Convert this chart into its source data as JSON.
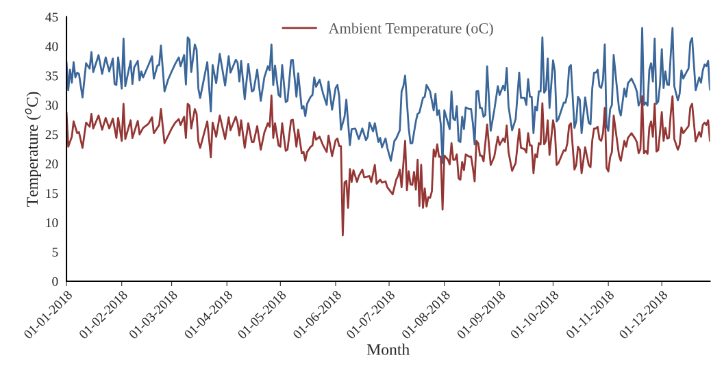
{
  "chart_data": {
    "type": "line",
    "xlabel": "Month",
    "ylabel": "Temperature ($^{o}$C)",
    "xlim": [
      "2018-01-01",
      "2018-12-28"
    ],
    "xticks": [
      {
        "value": "2018-01-01",
        "label": "01-01-2018"
      },
      {
        "value": "2018-02-01",
        "label": "01-02-2018"
      },
      {
        "value": "2018-03-01",
        "label": "01-03-2018"
      },
      {
        "value": "2018-04-01",
        "label": "01-04-2018"
      },
      {
        "value": "2018-05-01",
        "label": "01-05-2018"
      },
      {
        "value": "2018-06-01",
        "label": "01-06-2018"
      },
      {
        "value": "2018-07-01",
        "label": "01-07-2018"
      },
      {
        "value": "2018-08-01",
        "label": "01-08-2018"
      },
      {
        "value": "2018-09-01",
        "label": "01-09-2018"
      },
      {
        "value": "2018-10-01",
        "label": "01-10-2018"
      },
      {
        "value": "2018-11-01",
        "label": "01-11-2018"
      },
      {
        "value": "2018-12-01",
        "label": "01-12-2018"
      }
    ],
    "ylim": [
      0,
      45
    ],
    "yticks": [
      0,
      5,
      10,
      15,
      20,
      25,
      30,
      35,
      40,
      45
    ],
    "grid": false,
    "legend": "top",
    "marker": "none",
    "line_style": "solid",
    "series": [
      {
        "color": "#3a6699",
        "x": [
          "2018-01-01",
          "2018-01-02",
          "2018-01-03",
          "2018-01-04",
          "2018-01-05",
          "2018-01-06",
          "2018-01-07",
          "2018-01-08",
          "2018-01-10",
          "2018-01-12",
          "2018-01-14",
          "2018-01-15",
          "2018-01-16",
          "2018-01-19",
          "2018-01-21",
          "2018-01-23",
          "2018-01-25",
          "2018-01-27",
          "2018-01-28",
          "2018-01-29",
          "2018-01-30",
          "2018-02-01",
          "2018-02-02",
          "2018-02-03",
          "2018-02-06",
          "2018-02-07",
          "2018-02-08",
          "2018-02-10",
          "2018-02-11",
          "2018-02-12",
          "2018-02-13",
          "2018-02-16",
          "2018-02-18",
          "2018-02-19",
          "2018-02-21",
          "2018-02-22",
          "2018-02-23",
          "2018-02-25",
          "2018-02-27",
          "2018-03-01",
          "2018-03-03",
          "2018-03-05",
          "2018-03-06",
          "2018-03-08",
          "2018-03-09",
          "2018-03-10",
          "2018-03-11",
          "2018-03-12",
          "2018-03-14",
          "2018-03-15",
          "2018-03-16",
          "2018-03-17",
          "2018-03-21",
          "2018-03-23",
          "2018-03-24",
          "2018-03-26",
          "2018-03-28",
          "2018-03-31",
          "2018-04-02",
          "2018-04-03",
          "2018-04-06",
          "2018-04-07",
          "2018-04-08",
          "2018-04-09",
          "2018-04-11",
          "2018-04-13",
          "2018-04-15",
          "2018-04-16",
          "2018-04-18",
          "2018-04-20",
          "2018-04-22",
          "2018-04-24",
          "2018-04-25",
          "2018-04-26",
          "2018-04-27",
          "2018-04-28",
          "2018-04-30",
          "2018-05-01",
          "2018-05-02",
          "2018-05-04",
          "2018-05-05",
          "2018-05-07",
          "2018-05-08",
          "2018-05-10",
          "2018-05-11",
          "2018-05-13",
          "2018-05-14",
          "2018-05-15",
          "2018-05-16",
          "2018-05-18",
          "2018-05-19",
          "2018-05-20",
          "2018-05-21",
          "2018-05-23",
          "2018-05-25",
          "2018-05-27",
          "2018-05-28",
          "2018-05-30",
          "2018-06-01",
          "2018-06-02",
          "2018-06-03",
          "2018-06-04",
          "2018-06-06",
          "2018-06-07",
          "2018-06-09",
          "2018-06-10",
          "2018-06-12",
          "2018-06-14",
          "2018-06-16",
          "2018-06-18",
          "2018-06-19",
          "2018-06-20",
          "2018-06-22",
          "2018-06-23",
          "2018-06-24",
          "2018-06-25",
          "2018-06-26",
          "2018-06-27",
          "2018-06-29",
          "2018-06-30",
          "2018-07-02",
          "2018-07-04",
          "2018-07-05",
          "2018-07-07",
          "2018-07-08",
          "2018-07-09",
          "2018-07-10",
          "2018-07-12",
          "2018-07-13",
          "2018-07-14",
          "2018-07-16",
          "2018-07-17",
          "2018-07-18",
          "2018-07-20",
          "2018-07-21",
          "2018-07-22",
          "2018-07-24",
          "2018-07-26",
          "2018-07-27",
          "2018-07-28",
          "2018-07-29",
          "2018-07-30",
          "2018-07-31",
          "2018-08-01",
          "2018-08-04",
          "2018-08-05",
          "2018-08-06",
          "2018-08-07",
          "2018-08-08",
          "2018-08-09",
          "2018-08-10",
          "2018-08-11",
          "2018-08-12",
          "2018-08-13",
          "2018-08-15",
          "2018-08-16",
          "2018-08-17",
          "2018-08-18",
          "2018-08-19",
          "2018-08-20",
          "2018-08-21",
          "2018-08-22",
          "2018-08-23",
          "2018-08-24",
          "2018-08-25",
          "2018-08-27",
          "2018-08-29",
          "2018-08-31",
          "2018-09-01",
          "2018-09-03",
          "2018-09-04",
          "2018-09-05",
          "2018-09-06",
          "2018-09-08",
          "2018-09-10",
          "2018-09-12",
          "2018-09-13",
          "2018-09-15",
          "2018-09-16",
          "2018-09-17",
          "2018-09-18",
          "2018-09-19",
          "2018-09-20",
          "2018-09-21",
          "2018-09-22",
          "2018-09-23",
          "2018-09-24",
          "2018-09-25",
          "2018-09-26",
          "2018-09-27",
          "2018-09-28",
          "2018-09-29",
          "2018-10-01",
          "2018-10-02",
          "2018-10-03",
          "2018-10-04",
          "2018-10-07",
          "2018-10-08",
          "2018-10-09",
          "2018-10-10",
          "2018-10-11",
          "2018-10-13",
          "2018-10-14",
          "2018-10-15",
          "2018-10-16",
          "2018-10-17",
          "2018-10-19",
          "2018-10-21",
          "2018-10-22",
          "2018-10-23",
          "2018-10-24",
          "2018-10-25",
          "2018-10-26",
          "2018-10-27",
          "2018-10-28",
          "2018-10-29",
          "2018-10-30",
          "2018-10-31",
          "2018-11-01",
          "2018-11-02",
          "2018-11-03",
          "2018-11-04",
          "2018-11-07",
          "2018-11-08",
          "2018-11-10",
          "2018-11-11",
          "2018-11-12",
          "2018-11-14",
          "2018-11-16",
          "2018-11-17",
          "2018-11-18",
          "2018-11-19",
          "2018-11-20",
          "2018-11-21",
          "2018-11-22",
          "2018-11-23",
          "2018-11-24",
          "2018-11-25",
          "2018-11-26",
          "2018-11-27",
          "2018-11-28",
          "2018-11-29",
          "2018-11-30",
          "2018-12-01",
          "2018-12-02",
          "2018-12-03",
          "2018-12-04",
          "2018-12-05",
          "2018-12-06",
          "2018-12-07",
          "2018-12-08",
          "2018-12-10",
          "2018-12-11",
          "2018-12-12",
          "2018-12-13",
          "2018-12-15",
          "2018-12-16",
          "2018-12-17",
          "2018-12-18",
          "2018-12-20",
          "2018-12-22",
          "2018-12-23",
          "2018-12-24",
          "2018-12-25",
          "2018-12-26",
          "2018-12-27",
          "2018-12-28"
        ],
        "values": [
          37.3,
          32.5,
          36,
          33.8,
          37.3,
          34.7,
          35.5,
          35.3,
          31.3,
          37.1,
          36.2,
          39,
          35.6,
          38.5,
          35.3,
          38.1,
          35.7,
          37.9,
          33.6,
          33.4,
          38.1,
          32.8,
          41.3,
          33.2,
          37.5,
          33.6,
          36.4,
          37.5,
          34.2,
          35.7,
          34.7,
          36.8,
          38.3,
          34.5,
          36.7,
          36.8,
          40.1,
          32.3,
          34.3,
          35.7,
          37,
          38.1,
          36.6,
          38.5,
          33.5,
          41.5,
          41.1,
          35.6,
          40.3,
          39.4,
          32.8,
          31.2,
          37.3,
          28.9,
          36.8,
          33.7,
          38.7,
          33.3,
          38.3,
          35.5,
          37.7,
          37.2,
          34,
          37.5,
          31,
          37,
          32.3,
          32.5,
          36,
          30.7,
          34.7,
          36.6,
          35.9,
          40.3,
          33.4,
          36.7,
          31.7,
          31.4,
          36.8,
          30.5,
          30.7,
          37.6,
          37.7,
          31.4,
          35.4,
          29.4,
          29.8,
          28.1,
          30.2,
          31.4,
          31.7,
          34.7,
          33.1,
          34.3,
          31.9,
          30,
          34,
          29.2,
          32.9,
          33.4,
          31.5,
          25.8,
          28,
          30.9,
          23.2,
          25.9,
          26,
          24.2,
          26,
          24,
          24.6,
          27,
          25.5,
          26.9,
          25.3,
          23.7,
          24.4,
          22.8,
          24.3,
          22.7,
          20.5,
          23.9,
          24.3,
          25.7,
          32.3,
          33.2,
          35,
          26.1,
          23.5,
          23.5,
          27.2,
          28.5,
          28.7,
          31.2,
          31.4,
          33.4,
          32.3,
          29.1,
          31.9,
          28.3,
          29.1,
          26.7,
          20.1,
          29.1,
          25.9,
          32.3,
          27.7,
          27.4,
          29.8,
          23.9,
          23.7,
          28,
          25.9,
          29.6,
          29.3,
          29.3,
          26.9,
          23.3,
          32.3,
          32.4,
          29.5,
          29.5,
          28,
          28.3,
          36.6,
          25.6,
          29.1,
          33.2,
          31.7,
          33.3,
          32.5,
          36.3,
          29.8,
          25.7,
          27.6,
          35.5,
          31.2,
          31.2,
          30,
          34.4,
          31.4,
          31.4,
          25.2,
          29.7,
          29.1,
          32.3,
          32.3,
          41.5,
          32.1,
          32.6,
          37.9,
          29.5,
          37.6,
          35.7,
          27.2,
          27.6,
          30.4,
          30.4,
          31.9,
          36.4,
          36.8,
          26.1,
          27.2,
          31.4,
          30.9,
          25.2,
          31.3,
          27,
          26.7,
          32.9,
          35.5,
          35.5,
          36,
          33.2,
          32.9,
          34.3,
          40.3,
          26.5,
          25.6,
          29.3,
          30,
          38.5,
          29.3,
          28.2,
          32.8,
          31.4,
          33.7,
          34.5,
          33.2,
          32.3,
          29.9,
          30.6,
          43.1,
          30,
          30.4,
          29.9,
          36,
          37.1,
          34,
          41.3,
          30.2,
          30.6,
          33.6,
          39.5,
          32.9,
          35.7,
          33.5,
          33.4,
          38.5,
          43.1,
          33.2,
          30.8,
          31.9,
          35.9,
          34.5,
          35.7,
          36.2,
          40.7,
          41.4,
          32.5,
          34.7,
          33.8,
          35.9,
          36.9,
          36.6,
          37.5,
          32.6
        ]
      },
      {
        "name": "Ambient Temperature (oC)",
        "color": "#943634",
        "x": [
          "2018-01-01",
          "2018-01-02",
          "2018-01-04",
          "2018-01-05",
          "2018-01-07",
          "2018-01-08",
          "2018-01-10",
          "2018-01-12",
          "2018-01-14",
          "2018-01-15",
          "2018-01-16",
          "2018-01-19",
          "2018-01-21",
          "2018-01-23",
          "2018-01-25",
          "2018-01-27",
          "2018-01-29",
          "2018-01-30",
          "2018-02-01",
          "2018-02-02",
          "2018-02-03",
          "2018-02-06",
          "2018-02-07",
          "2018-02-10",
          "2018-02-11",
          "2018-02-13",
          "2018-02-16",
          "2018-02-18",
          "2018-02-19",
          "2018-02-22",
          "2018-02-23",
          "2018-02-25",
          "2018-03-01",
          "2018-03-03",
          "2018-03-05",
          "2018-03-06",
          "2018-03-08",
          "2018-03-09",
          "2018-03-10",
          "2018-03-11",
          "2018-03-12",
          "2018-03-14",
          "2018-03-15",
          "2018-03-16",
          "2018-03-17",
          "2018-03-21",
          "2018-03-23",
          "2018-03-24",
          "2018-03-26",
          "2018-03-28",
          "2018-03-31",
          "2018-04-02",
          "2018-04-03",
          "2018-04-06",
          "2018-04-07",
          "2018-04-08",
          "2018-04-09",
          "2018-04-11",
          "2018-04-13",
          "2018-04-15",
          "2018-04-16",
          "2018-04-18",
          "2018-04-20",
          "2018-04-22",
          "2018-04-24",
          "2018-04-25",
          "2018-04-26",
          "2018-04-27",
          "2018-04-28",
          "2018-04-30",
          "2018-05-01",
          "2018-05-02",
          "2018-05-04",
          "2018-05-05",
          "2018-05-07",
          "2018-05-08",
          "2018-05-10",
          "2018-05-11",
          "2018-05-13",
          "2018-05-14",
          "2018-05-15",
          "2018-05-16",
          "2018-05-18",
          "2018-05-19",
          "2018-05-20",
          "2018-05-21",
          "2018-05-23",
          "2018-05-25",
          "2018-05-27",
          "2018-05-28",
          "2018-05-30",
          "2018-06-01",
          "2018-06-02",
          "2018-06-03",
          "2018-06-04",
          "2018-06-05",
          "2018-06-06",
          "2018-06-07",
          "2018-06-08",
          "2018-06-09",
          "2018-06-10",
          "2018-06-11",
          "2018-06-13",
          "2018-06-14",
          "2018-06-16",
          "2018-06-17",
          "2018-06-20",
          "2018-06-21",
          "2018-06-23",
          "2018-06-24",
          "2018-06-26",
          "2018-06-27",
          "2018-06-29",
          "2018-06-30",
          "2018-07-03",
          "2018-07-05",
          "2018-07-06",
          "2018-07-07",
          "2018-07-08",
          "2018-07-10",
          "2018-07-11",
          "2018-07-12",
          "2018-07-13",
          "2018-07-14",
          "2018-07-15",
          "2018-07-16",
          "2018-07-17",
          "2018-07-18",
          "2018-07-19",
          "2018-07-20",
          "2018-07-21",
          "2018-07-22",
          "2018-07-23",
          "2018-07-24",
          "2018-07-25",
          "2018-07-26",
          "2018-07-27",
          "2018-07-28",
          "2018-07-29",
          "2018-07-30",
          "2018-07-31",
          "2018-08-01",
          "2018-08-03",
          "2018-08-04",
          "2018-08-05",
          "2018-08-06",
          "2018-08-07",
          "2018-08-08",
          "2018-08-09",
          "2018-08-10",
          "2018-08-11",
          "2018-08-12",
          "2018-08-13",
          "2018-08-15",
          "2018-08-16",
          "2018-08-17",
          "2018-08-18",
          "2018-08-19",
          "2018-08-20",
          "2018-08-21",
          "2018-08-22",
          "2018-08-23",
          "2018-08-25",
          "2018-08-27",
          "2018-08-29",
          "2018-08-31",
          "2018-09-01",
          "2018-09-03",
          "2018-09-04",
          "2018-09-05",
          "2018-09-06",
          "2018-09-08",
          "2018-09-10",
          "2018-09-12",
          "2018-09-13",
          "2018-09-15",
          "2018-09-16",
          "2018-09-17",
          "2018-09-18",
          "2018-09-19",
          "2018-09-20",
          "2018-09-21",
          "2018-09-22",
          "2018-09-23",
          "2018-09-24",
          "2018-09-25",
          "2018-09-26",
          "2018-09-27",
          "2018-09-28",
          "2018-09-29",
          "2018-10-01",
          "2018-10-02",
          "2018-10-03",
          "2018-10-04",
          "2018-10-07",
          "2018-10-08",
          "2018-10-09",
          "2018-10-10",
          "2018-10-11",
          "2018-10-13",
          "2018-10-14",
          "2018-10-15",
          "2018-10-16",
          "2018-10-17",
          "2018-10-19",
          "2018-10-21",
          "2018-10-22",
          "2018-10-23",
          "2018-10-24",
          "2018-10-25",
          "2018-10-26",
          "2018-10-27",
          "2018-10-28",
          "2018-10-29",
          "2018-10-30",
          "2018-10-31",
          "2018-11-01",
          "2018-11-02",
          "2018-11-03",
          "2018-11-04",
          "2018-11-07",
          "2018-11-08",
          "2018-11-10",
          "2018-11-11",
          "2018-11-12",
          "2018-11-14",
          "2018-11-16",
          "2018-11-17",
          "2018-11-18",
          "2018-11-19",
          "2018-11-20",
          "2018-11-21",
          "2018-11-22",
          "2018-11-23",
          "2018-11-24",
          "2018-11-25",
          "2018-11-26",
          "2018-11-27",
          "2018-11-28",
          "2018-11-29",
          "2018-11-30",
          "2018-12-01",
          "2018-12-02",
          "2018-12-03",
          "2018-12-04",
          "2018-12-05",
          "2018-12-06",
          "2018-12-07",
          "2018-12-08",
          "2018-12-10",
          "2018-12-11",
          "2018-12-12",
          "2018-12-13",
          "2018-12-15",
          "2018-12-16",
          "2018-12-17",
          "2018-12-18",
          "2018-12-20",
          "2018-12-22",
          "2018-12-23",
          "2018-12-24",
          "2018-12-25",
          "2018-12-26",
          "2018-12-27",
          "2018-12-28"
        ],
        "values": [
          28.7,
          22.9,
          24.6,
          27.2,
          25.2,
          25.4,
          22.7,
          27,
          26.3,
          28.5,
          26,
          28.2,
          25.8,
          27.8,
          26,
          27.7,
          24.4,
          27.8,
          23.9,
          30.2,
          24.2,
          27.4,
          24.4,
          27.3,
          25,
          26.1,
          26.8,
          27.9,
          25.2,
          26.6,
          29.3,
          23.5,
          26,
          27,
          27.6,
          26.6,
          28,
          24.4,
          30.2,
          29.9,
          26,
          29.3,
          28.5,
          23.8,
          22.7,
          27.2,
          21.1,
          27,
          24.6,
          28.2,
          24.2,
          27.9,
          25.7,
          28,
          26.9,
          24.8,
          27.4,
          22.7,
          26.9,
          23.7,
          23.7,
          26.4,
          22.4,
          25.3,
          26.9,
          26.3,
          31.6,
          24.4,
          26.9,
          23.1,
          22.9,
          26.9,
          22.2,
          22.4,
          27.4,
          27.5,
          22.9,
          25.8,
          21.8,
          22,
          20.5,
          22,
          22.9,
          23.1,
          25.4,
          24.1,
          24.6,
          23.1,
          22,
          24.8,
          21.3,
          24,
          24.3,
          23,
          23,
          7.8,
          16.8,
          17.1,
          12.5,
          19.1,
          16.9,
          18.9,
          16.9,
          17.9,
          19,
          17.7,
          17.9,
          16.9,
          19.8,
          16.6,
          17.3,
          16.8,
          17,
          16,
          14.8,
          17.3,
          17.9,
          19,
          16,
          23.9,
          15.5,
          18.7,
          16.5,
          16.4,
          18.6,
          15.6,
          20.7,
          12.8,
          19.8,
          12.5,
          15.8,
          12.7,
          14.3,
          14.2,
          15.3,
          22.4,
          21.2,
          23.3,
          21.2,
          21.2,
          12.2,
          21.4,
          20.7,
          19.9,
          23.5,
          20.7,
          20.7,
          21.6,
          17.5,
          17.3,
          20.3,
          18.9,
          21.6,
          21.2,
          21.2,
          19.3,
          17,
          23.9,
          23.5,
          21.4,
          21.4,
          20.4,
          26.7,
          19.8,
          21.2,
          24.6,
          23.2,
          24.3,
          23.7,
          26.5,
          22,
          18.8,
          20.1,
          25.9,
          22.7,
          22.5,
          21.9,
          25.2,
          23.1,
          23.1,
          18.4,
          21.6,
          21.1,
          23.5,
          23.3,
          30.3,
          23.3,
          23.9,
          27.4,
          21.5,
          27.4,
          25.7,
          19.8,
          20.1,
          22.3,
          22.2,
          23.5,
          26.5,
          26.9,
          19,
          19.8,
          22.9,
          22.4,
          18.4,
          22.8,
          19.8,
          19.4,
          24,
          26,
          26,
          26.3,
          24.2,
          23.9,
          25.2,
          29.5,
          19.3,
          18.7,
          21.1,
          22,
          28.2,
          21.4,
          20.5,
          23.9,
          22.9,
          24.4,
          25.2,
          24.3,
          23.7,
          21.8,
          22.5,
          31.5,
          21.8,
          22.2,
          21.7,
          26.2,
          27.2,
          24.6,
          30.2,
          22.1,
          22.3,
          25.4,
          28.8,
          23.9,
          26.1,
          24.3,
          24.4,
          28.5,
          31.5,
          24.2,
          22.4,
          23.2,
          26.2,
          25.2,
          26,
          26.4,
          29.6,
          30.2,
          23.8,
          25.4,
          24.6,
          26.6,
          27,
          26.6,
          27.4,
          23.9
        ]
      }
    ]
  }
}
